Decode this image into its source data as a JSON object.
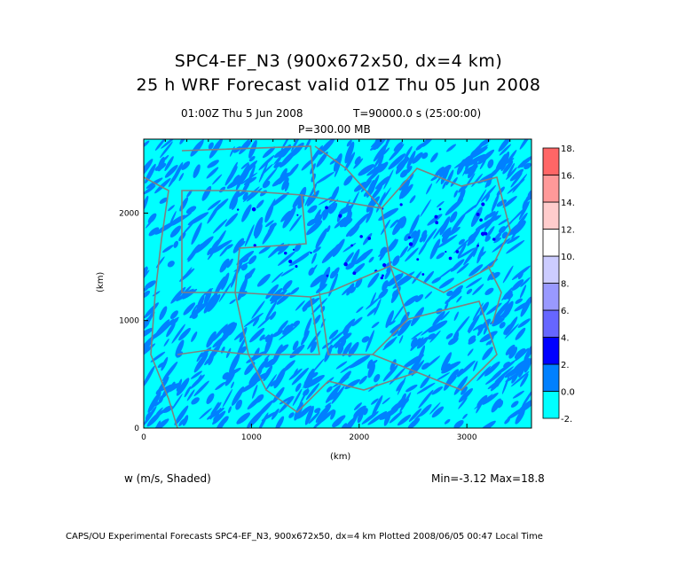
{
  "chart_data": {
    "type": "heatmap",
    "title": "SPC4-EF_N3 (900x672x50, dx=4 km)",
    "subtitle": "25 h WRF Forecast valid 01Z Thu 05 Jun 2008",
    "time_label": "01:00Z Thu  5 Jun 2008",
    "t_label": "T=90000.0 s (25:00:00)",
    "level_label": "P=300.00 MB",
    "xlabel": "(km)",
    "ylabel": "(km)",
    "xlim": [
      0,
      3600
    ],
    "ylim": [
      0,
      2688
    ],
    "xticks": [
      "0",
      "1000",
      "2000",
      "3000"
    ],
    "xtick_values": [
      0,
      1000,
      2000,
      3000
    ],
    "yticks": [
      "0",
      "1000",
      "2000"
    ],
    "ytick_values": [
      0,
      1000,
      2000
    ],
    "field_label": "w (m/s, Shaded)",
    "minmax_label": "Min=-3.12 Max=18.8",
    "colorbar": {
      "levels": [
        "-2.",
        "0.0",
        "2.",
        "4.",
        "6.",
        "8.",
        "10.",
        "12.",
        "14.",
        "16.",
        "18."
      ],
      "colors": [
        "#00ffff",
        "#0080ff",
        "#0000ff",
        "#6666ff",
        "#9999ff",
        "#ccccff",
        "#ffffff",
        "#ffcccc",
        "#ff9999",
        "#ff6666"
      ]
    },
    "map_line_color": "#808080"
  },
  "footer": "CAPS/OU Experimental Forecasts  SPC4-EF_N3, 900x672x50, dx=4 km  Plotted 2008/06/05 00:47 Local Time"
}
